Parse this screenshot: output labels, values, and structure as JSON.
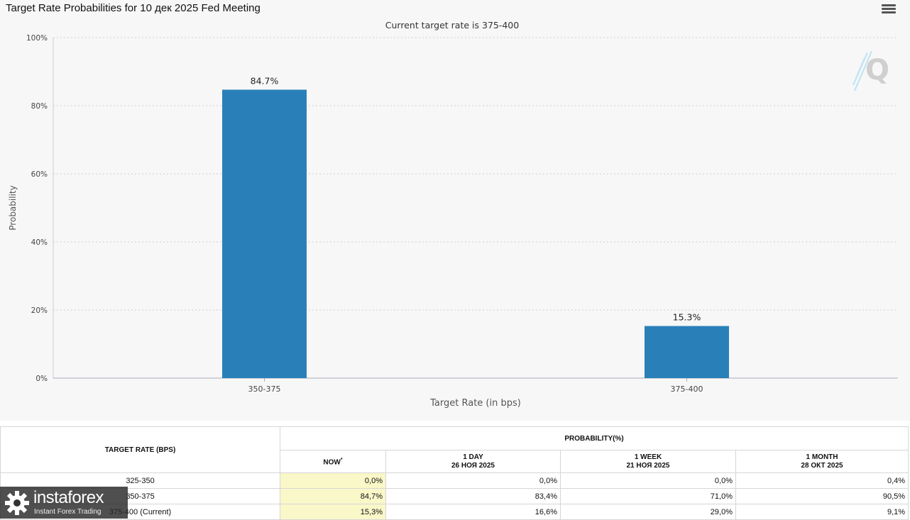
{
  "chart_data": {
    "type": "bar",
    "title": "Target Rate Probabilities for 10 дек 2025 Fed Meeting",
    "subtitle": "Current target rate is 375-400",
    "xlabel": "Target Rate (in bps)",
    "ylabel": "Probability",
    "ylim": [
      0,
      100
    ],
    "yticks": [
      "0%",
      "20%",
      "40%",
      "60%",
      "80%",
      "100%"
    ],
    "categories": [
      "350-375",
      "375-400"
    ],
    "values": [
      84.7,
      15.3
    ],
    "data_labels": [
      "84.7%",
      "15.3%"
    ],
    "bar_color": "#2980b9",
    "grid": true
  },
  "table": {
    "col_rate": "TARGET RATE (BPS)",
    "col_prob": "PROBABILITY(%)",
    "sub_headers": [
      {
        "label": "NOW",
        "sup": "*",
        "date": ""
      },
      {
        "label": "1 DAY",
        "date": "26 НОЯ 2025"
      },
      {
        "label": "1 WEEK",
        "date": "21 НОЯ 2025"
      },
      {
        "label": "1 MONTH",
        "date": "28 ОКТ 2025"
      }
    ],
    "rows": [
      {
        "rate": "325-350",
        "now": "0,0%",
        "day": "0,0%",
        "week": "0,0%",
        "month": "0,4%"
      },
      {
        "rate": "350-375",
        "now": "84,7%",
        "day": "83,4%",
        "week": "71,0%",
        "month": "90,5%"
      },
      {
        "rate": "375-400 (Current)",
        "now": "15,3%",
        "day": "16,6%",
        "week": "29,0%",
        "month": "9,1%"
      }
    ]
  },
  "watermark": {
    "brand": "instaforex",
    "tagline": "Instant Forex Trading"
  },
  "icons": {
    "menu": "menu-icon",
    "logo": "q-logo-icon",
    "gear": "gear-icon"
  }
}
